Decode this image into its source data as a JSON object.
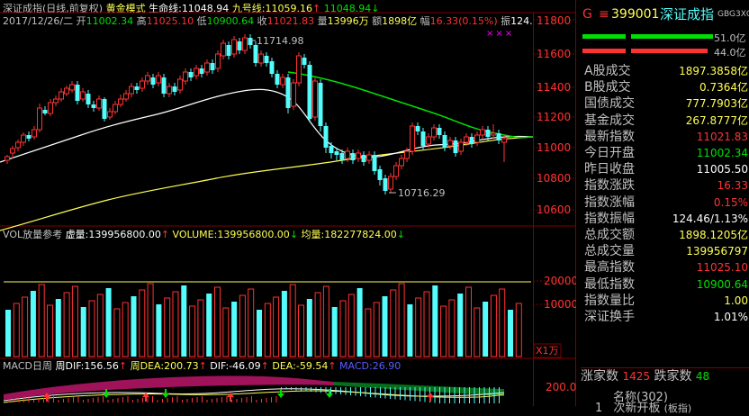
{
  "colors": {
    "up": "#ff3232",
    "down": "#54fcfc",
    "ma_short": "#ffffff",
    "ma_mid": "#00e000",
    "ma_long": "#ffff54",
    "grid": "#800000",
    "yellow": "#ffff00",
    "white": "#ffffff",
    "magenta": "#ff00ff",
    "blue": "#5b5bff",
    "cyan": "#00ffff",
    "panel_label": "#c0c0c0"
  },
  "header": {
    "line1": {
      "title": "深证成指(日线,前复权)",
      "mode": "黄金模式",
      "life_label": "生命线:",
      "life_value": "11048.94",
      "nine_label": "九号线:",
      "nine_value": "11059.16",
      "extra_value": "11048.94"
    },
    "line2": {
      "date": "2017/12/26/二",
      "open_label": "开",
      "open_value": "11002.34",
      "high_label": "高",
      "high_value": "11025.10",
      "low_label": "低",
      "low_value": "10900.64",
      "close_label": "收",
      "close_value": "11021.83",
      "vol_label": "量",
      "vol_value": "13996万",
      "amount_label": "额",
      "amount_value": "1898亿",
      "range_label": "幅",
      "range_value": "16.33(0.15%)",
      "amp_label": "振",
      "amp_value": "124."
    },
    "arrow_up": "↑",
    "arrow_down": "↓",
    "marks": "×××"
  },
  "price_axis": {
    "ticks": [
      "11800",
      "11600",
      "11400",
      "11200",
      "11000",
      "10800",
      "10600"
    ]
  },
  "annotations": {
    "high": "11714.98",
    "low": "10716.29"
  },
  "volume_panel": {
    "label": "VOL放量参考",
    "virtual_label": "虚量:",
    "virtual_value": "139956800.00",
    "volume_label": "VOLUME:",
    "volume_value": "139956800.00",
    "avg_label": "均量:",
    "avg_value": "182277824.00",
    "ticks": [
      "20000",
      "10000"
    ],
    "unit": "X1万"
  },
  "macd_panel": {
    "label": "MACD日周",
    "week_dif_label": "周DIF:",
    "week_dif_value": "156.56",
    "week_dea_label": "周DEA:",
    "week_dea_value": "200.73",
    "dif_label": "DIF:",
    "dif_value": "-46.09",
    "dea_label": "DEA:",
    "dea_value": "-59.54",
    "macd_label": "MACD:",
    "macd_value": "26.90",
    "tick": "200.0"
  },
  "right_panel": {
    "badge": "G",
    "menu_icon": "≡",
    "code": "399001",
    "name": "深证成指",
    "tag": "GBG3XG1",
    "bar1_value": "51.0亿",
    "bar2_value": "44.0亿",
    "rows": [
      {
        "label": "A股成交",
        "value": "1897.3858亿",
        "color": "#ffff54"
      },
      {
        "label": "B股成交",
        "value": "0.7364亿",
        "color": "#ffff54"
      },
      {
        "label": "国债成交",
        "value": "777.7903亿",
        "color": "#ffff54"
      },
      {
        "label": "基金成交",
        "value": "267.8777亿",
        "color": "#ffff54"
      },
      {
        "label": "最新指数",
        "value": "11021.83",
        "color": "#ff3232"
      },
      {
        "label": "今日开盘",
        "value": "11002.34",
        "color": "#00e000"
      },
      {
        "label": "昨日收盘",
        "value": "11005.50",
        "color": "#ffffff"
      },
      {
        "label": "指数涨跌",
        "value": "16.33",
        "color": "#ff3232"
      },
      {
        "label": "指数涨幅",
        "value": "0.15%",
        "color": "#ff3232"
      },
      {
        "label": "指数振幅",
        "value": "124.46/1.13%",
        "color": "#ffffff"
      },
      {
        "label": "总成交额",
        "value": "1898.1205亿",
        "color": "#ffff54"
      },
      {
        "label": "总成交量",
        "value": "139956797",
        "color": "#ffff54"
      },
      {
        "label": "最高指数",
        "value": "11025.10",
        "color": "#ff3232"
      },
      {
        "label": "最低指数",
        "value": "10900.64",
        "color": "#00e000"
      },
      {
        "label": "指数量比",
        "value": "1.00",
        "color": "#ffff54"
      },
      {
        "label": "深证换手",
        "value": "1.01%",
        "color": "#ffffff"
      }
    ],
    "rise_label": "涨家数",
    "rise_value": "1425",
    "fall_label": "跌家数",
    "fall_value": "48",
    "list_header": "名称(302)",
    "list_item_index": "1",
    "list_item_name": "次新开板",
    "list_item_tag": "(板指)"
  }
}
